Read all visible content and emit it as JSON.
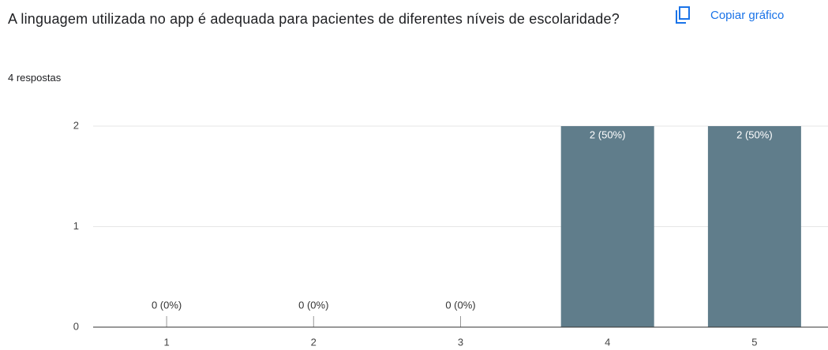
{
  "header": {
    "title": "A linguagem utilizada no app é adequada para pacientes de diferentes níveis de escolaridade?",
    "responses": "4 respostas",
    "copy_button": "Copiar gráfico"
  },
  "chart_data": {
    "type": "bar",
    "categories": [
      "1",
      "2",
      "3",
      "4",
      "5"
    ],
    "values": [
      0,
      0,
      0,
      2,
      2
    ],
    "value_labels": [
      "0 (0%)",
      "0 (0%)",
      "0 (0%)",
      "2 (50%)",
      "2 (50%)"
    ],
    "color": "#607d8b",
    "ylim": [
      0,
      2
    ],
    "yticks": [
      0,
      1,
      2
    ],
    "grid": true
  }
}
